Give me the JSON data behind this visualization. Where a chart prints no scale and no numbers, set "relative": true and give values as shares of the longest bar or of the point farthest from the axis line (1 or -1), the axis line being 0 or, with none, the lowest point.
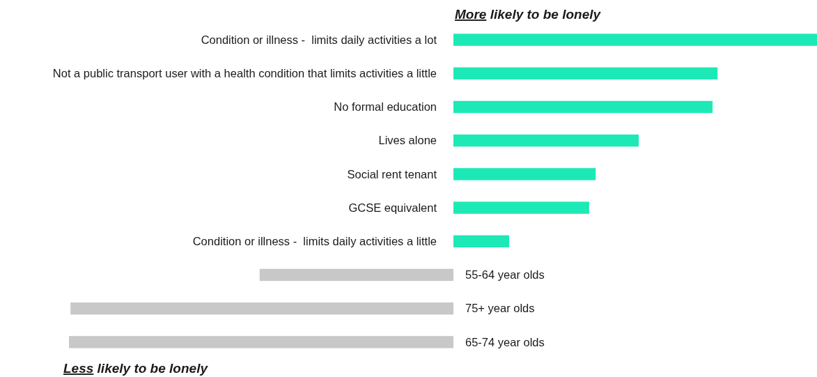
{
  "chart_data": {
    "type": "bar",
    "orientation": "horizontal",
    "relative": true,
    "categories": [
      "Condition or illness -  limits daily activities a lot",
      "Not a public transport user with a health condition that limits activities a little",
      "No formal education",
      "Lives alone",
      "Social rent tenant",
      "GCSE equivalent",
      "Condition or illness -  limits daily activities a little",
      "55-64 year olds",
      "75+ year olds",
      "65-74 year olds"
    ],
    "values": [
      0.946,
      0.687,
      0.674,
      0.482,
      0.37,
      0.353,
      0.145,
      -0.504,
      -0.996,
      -1
    ],
    "colors": [
      "#1de9b6",
      "#1de9b6",
      "#1de9b6",
      "#1de9b6",
      "#1de9b6",
      "#1de9b6",
      "#1de9b6",
      "#c8c8c8",
      "#c8c8c8",
      "#c8c8c8"
    ],
    "annotations": [
      "More likely to be lonely",
      "Less likely to be lonely"
    ]
  }
}
